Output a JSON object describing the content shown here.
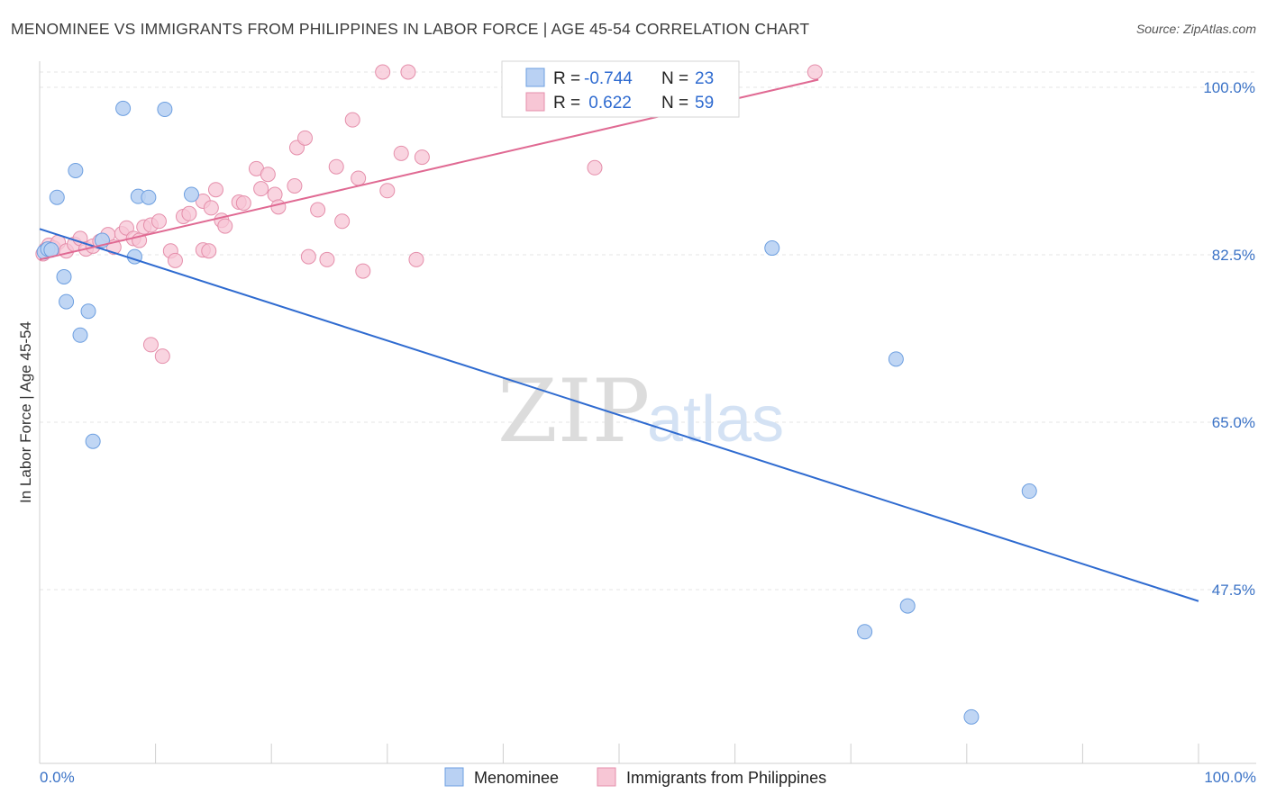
{
  "title": "MENOMINEE VS IMMIGRANTS FROM PHILIPPINES IN LABOR FORCE | AGE 45-54 CORRELATION CHART",
  "source": "Source: ZipAtlas.com",
  "watermark": {
    "zip": "ZIP",
    "atlas": "atlas"
  },
  "colors": {
    "menominee_fill": "#b9d1f3",
    "menominee_stroke": "#6d9fe0",
    "menominee_line": "#2f6bd0",
    "philippines_fill": "#f7c6d5",
    "philippines_stroke": "#e58fab",
    "philippines_line": "#e06a93",
    "tick_text": "#3a72c6",
    "grid": "#e6e6e6"
  },
  "legend": {
    "row1": {
      "r_label": "R =",
      "r_value": "-0.744",
      "n_label": "N =",
      "n_value": "23"
    },
    "row2": {
      "r_label": "R =",
      "r_value": " 0.622",
      "n_label": "N =",
      "n_value": "59"
    }
  },
  "bottom_legend": {
    "menominee": "Menominee",
    "philippines": "Immigrants from Philippines"
  },
  "chart_data": {
    "type": "scatter",
    "title": "MENOMINEE VS IMMIGRANTS FROM PHILIPPINES IN LABOR FORCE | AGE 45-54 CORRELATION CHART",
    "xlabel": "",
    "ylabel": "In Labor Force | Age 45-54",
    "xlim": [
      0,
      100
    ],
    "ylim": [
      31.0,
      102.0
    ],
    "x_tick_labels": [
      "0.0%",
      "100.0%"
    ],
    "y_ticks": [
      {
        "value": 100.0,
        "label": "100.0%"
      },
      {
        "value": 82.5,
        "label": "82.5%"
      },
      {
        "value": 65.0,
        "label": "65.0%"
      },
      {
        "value": 47.5,
        "label": "47.5%"
      }
    ],
    "grid": true,
    "legend_position": "top-center",
    "series": [
      {
        "name": "Menominee",
        "r": -0.744,
        "n": 23,
        "trend": {
          "x": [
            0,
            100
          ],
          "y": [
            85.2,
            46.3
          ]
        },
        "points": [
          {
            "x": 0.4,
            "y": 82.8
          },
          {
            "x": 0.7,
            "y": 83.1
          },
          {
            "x": 1.0,
            "y": 83.0
          },
          {
            "x": 1.5,
            "y": 88.5
          },
          {
            "x": 2.1,
            "y": 80.2
          },
          {
            "x": 2.3,
            "y": 77.6
          },
          {
            "x": 3.1,
            "y": 91.3
          },
          {
            "x": 3.5,
            "y": 74.1
          },
          {
            "x": 4.2,
            "y": 76.6
          },
          {
            "x": 4.6,
            "y": 63.0
          },
          {
            "x": 5.4,
            "y": 84.0
          },
          {
            "x": 7.2,
            "y": 97.8
          },
          {
            "x": 8.2,
            "y": 82.3
          },
          {
            "x": 8.5,
            "y": 88.6
          },
          {
            "x": 9.4,
            "y": 88.5
          },
          {
            "x": 10.8,
            "y": 97.7
          },
          {
            "x": 13.1,
            "y": 88.8
          },
          {
            "x": 63.2,
            "y": 83.2
          },
          {
            "x": 73.9,
            "y": 71.6
          },
          {
            "x": 71.2,
            "y": 43.1
          },
          {
            "x": 74.9,
            "y": 45.8
          },
          {
            "x": 85.4,
            "y": 57.8
          },
          {
            "x": 80.4,
            "y": 34.2
          }
        ]
      },
      {
        "name": "Immigrants from Philippines",
        "r": 0.622,
        "n": 59,
        "trend": {
          "x": [
            0,
            67.2
          ],
          "y": [
            82.0,
            100.8
          ]
        },
        "points": [
          {
            "x": 0.3,
            "y": 82.6
          },
          {
            "x": 0.8,
            "y": 83.5
          },
          {
            "x": 1.2,
            "y": 83.2
          },
          {
            "x": 1.6,
            "y": 83.8
          },
          {
            "x": 2.3,
            "y": 82.9
          },
          {
            "x": 3.0,
            "y": 83.6
          },
          {
            "x": 3.5,
            "y": 84.2
          },
          {
            "x": 4.0,
            "y": 83.1
          },
          {
            "x": 4.6,
            "y": 83.4
          },
          {
            "x": 5.2,
            "y": 83.9
          },
          {
            "x": 5.9,
            "y": 84.6
          },
          {
            "x": 6.4,
            "y": 83.3
          },
          {
            "x": 7.1,
            "y": 84.7
          },
          {
            "x": 7.5,
            "y": 85.3
          },
          {
            "x": 8.1,
            "y": 84.2
          },
          {
            "x": 8.6,
            "y": 84.0
          },
          {
            "x": 9.0,
            "y": 85.4
          },
          {
            "x": 9.6,
            "y": 85.6
          },
          {
            "x": 10.3,
            "y": 86.0
          },
          {
            "x": 11.3,
            "y": 82.9
          },
          {
            "x": 11.7,
            "y": 81.9
          },
          {
            "x": 12.4,
            "y": 86.5
          },
          {
            "x": 12.9,
            "y": 86.8
          },
          {
            "x": 14.1,
            "y": 88.1
          },
          {
            "x": 14.8,
            "y": 87.4
          },
          {
            "x": 14.1,
            "y": 83.0
          },
          {
            "x": 14.6,
            "y": 82.9
          },
          {
            "x": 15.2,
            "y": 89.3
          },
          {
            "x": 15.7,
            "y": 86.1
          },
          {
            "x": 16.0,
            "y": 85.5
          },
          {
            "x": 17.2,
            "y": 88.0
          },
          {
            "x": 17.6,
            "y": 87.9
          },
          {
            "x": 18.7,
            "y": 91.5
          },
          {
            "x": 19.1,
            "y": 89.4
          },
          {
            "x": 19.7,
            "y": 90.9
          },
          {
            "x": 20.3,
            "y": 88.8
          },
          {
            "x": 20.6,
            "y": 87.5
          },
          {
            "x": 22.0,
            "y": 89.7
          },
          {
            "x": 22.2,
            "y": 93.7
          },
          {
            "x": 22.9,
            "y": 94.7
          },
          {
            "x": 23.2,
            "y": 82.3
          },
          {
            "x": 24.0,
            "y": 87.2
          },
          {
            "x": 24.8,
            "y": 82.0
          },
          {
            "x": 25.6,
            "y": 91.7
          },
          {
            "x": 26.1,
            "y": 86.0
          },
          {
            "x": 27.0,
            "y": 96.6
          },
          {
            "x": 27.5,
            "y": 90.5
          },
          {
            "x": 27.9,
            "y": 80.8
          },
          {
            "x": 30.0,
            "y": 89.2
          },
          {
            "x": 29.6,
            "y": 101.6
          },
          {
            "x": 31.2,
            "y": 93.1
          },
          {
            "x": 31.8,
            "y": 101.6
          },
          {
            "x": 32.5,
            "y": 82.0
          },
          {
            "x": 33.0,
            "y": 92.7
          },
          {
            "x": 9.6,
            "y": 73.1
          },
          {
            "x": 10.6,
            "y": 71.9
          },
          {
            "x": 47.9,
            "y": 91.6
          },
          {
            "x": 66.9,
            "y": 101.6
          },
          {
            "x": 0.5,
            "y": 83.0
          }
        ]
      }
    ]
  }
}
